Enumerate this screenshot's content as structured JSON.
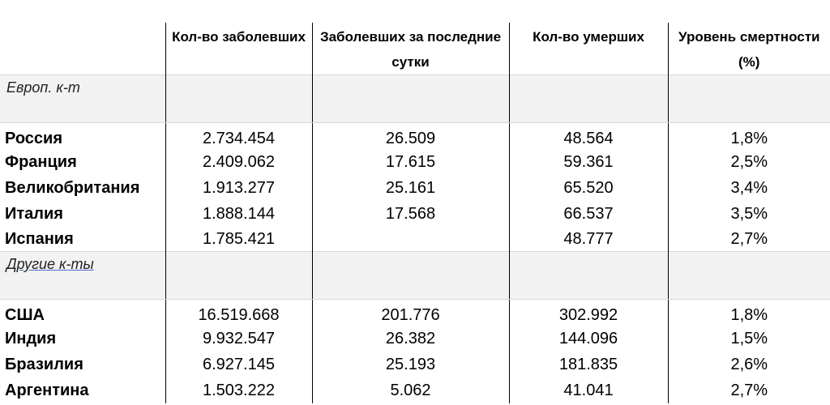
{
  "headers": {
    "col0": "",
    "col1": "Кол-во заболевших",
    "col2": "Заболевших за последние сутки",
    "col3": "Кол-во умерших",
    "col4": "Уровень смертности (%)"
  },
  "sections": [
    {
      "label": "Европ. к-т",
      "rows": [
        {
          "country": "Россия",
          "cases": "2.734.454",
          "daily": "26.509",
          "deaths": "48.564",
          "rate": "1,8%"
        },
        {
          "country": "Франция",
          "cases": "2.409.062",
          "daily": "17.615",
          "deaths": "59.361",
          "rate": "2,5%"
        },
        {
          "country": "Великобритания",
          "cases": "1.913.277",
          "daily": "25.161",
          "deaths": "65.520",
          "rate": "3,4%"
        },
        {
          "country": "Италия",
          "cases": "1.888.144",
          "daily": "17.568",
          "deaths": "66.537",
          "rate": "3,5%"
        },
        {
          "country": "Испания",
          "cases": "1.785.421",
          "daily": "",
          "deaths": "48.777",
          "rate": "2,7%"
        }
      ]
    },
    {
      "label": "Другие  к-ты",
      "rows": [
        {
          "country": "США",
          "cases": "16.519.668",
          "daily": "201.776",
          "deaths": "302.992",
          "rate": "1,8%"
        },
        {
          "country": "Индия",
          "cases": "9.932.547",
          "daily": "26.382",
          "deaths": "144.096",
          "rate": "1,5%"
        },
        {
          "country": "Бразилия",
          "cases": "6.927.145",
          "daily": "25.193",
          "deaths": "181.835",
          "rate": "2,6%"
        },
        {
          "country": "Аргентина",
          "cases": "1.503.222",
          "daily": "5.062",
          "deaths": "41.041",
          "rate": "2,7%"
        }
      ]
    }
  ]
}
